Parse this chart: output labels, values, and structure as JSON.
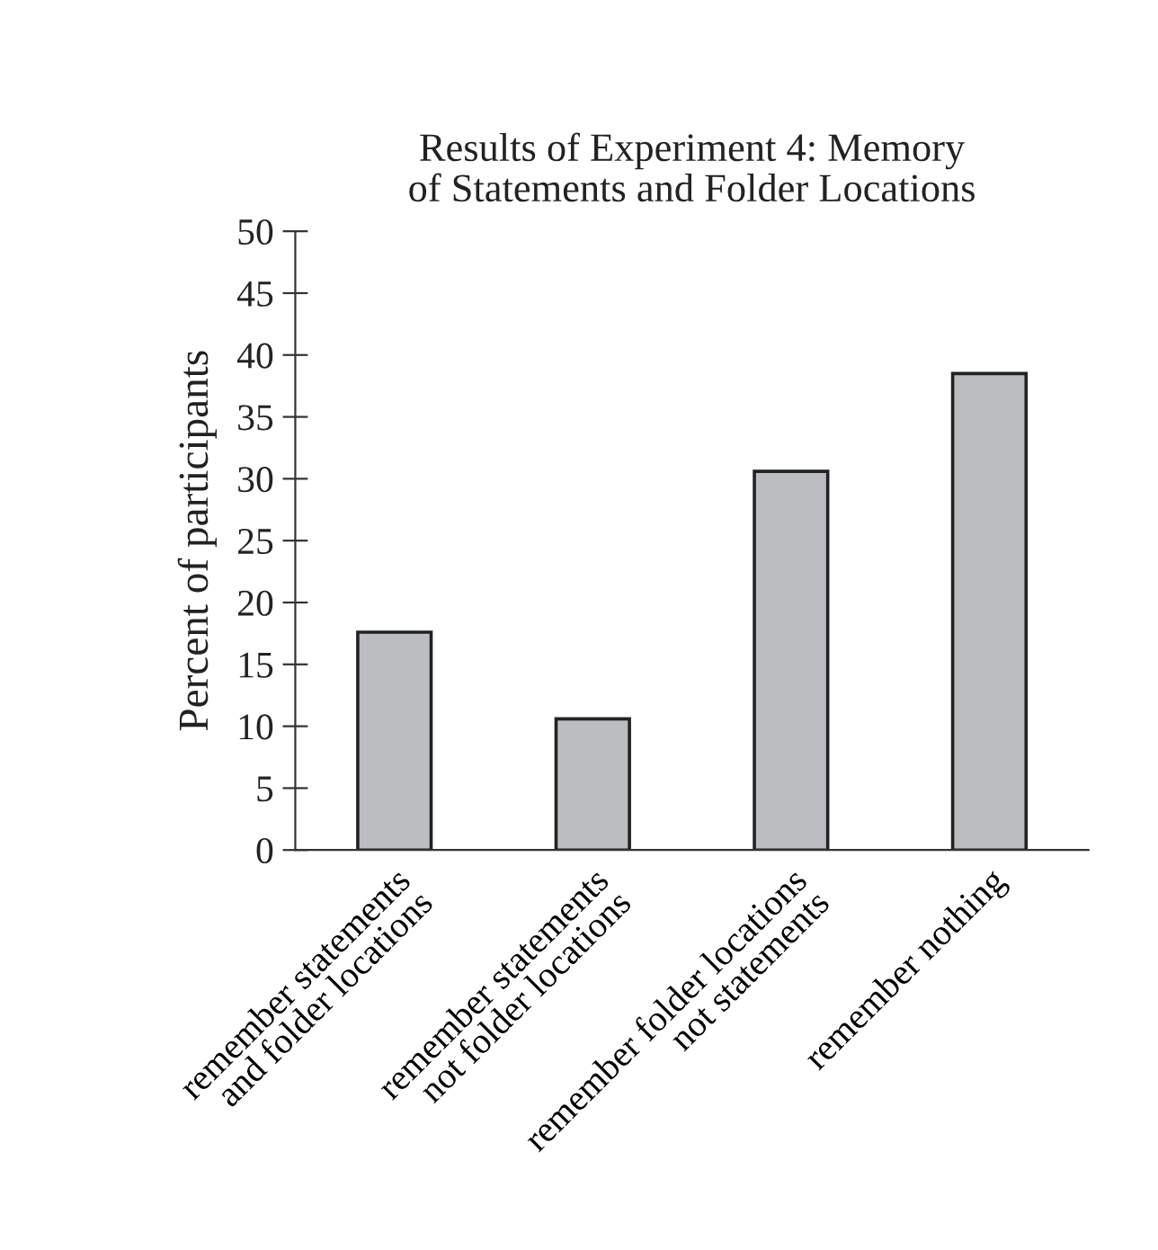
{
  "chart_data": {
    "type": "bar",
    "title": "Results of Experiment 4: Memory\nof Statements and Folder Locations",
    "ylabel": "Percent of participants",
    "categories": [
      "remember statements\nand folder locations",
      "remember statements\nnot folder locations",
      "remember folder locations\nnot statements",
      "remember nothing"
    ],
    "values": [
      17.6,
      10.6,
      30.6,
      38.5
    ],
    "color": "#bcbdc0",
    "ylim": [
      0,
      50
    ],
    "yticks": [
      0,
      5,
      10,
      15,
      20,
      25,
      30,
      35,
      40,
      45,
      50
    ],
    "grid": false,
    "legend": false
  }
}
